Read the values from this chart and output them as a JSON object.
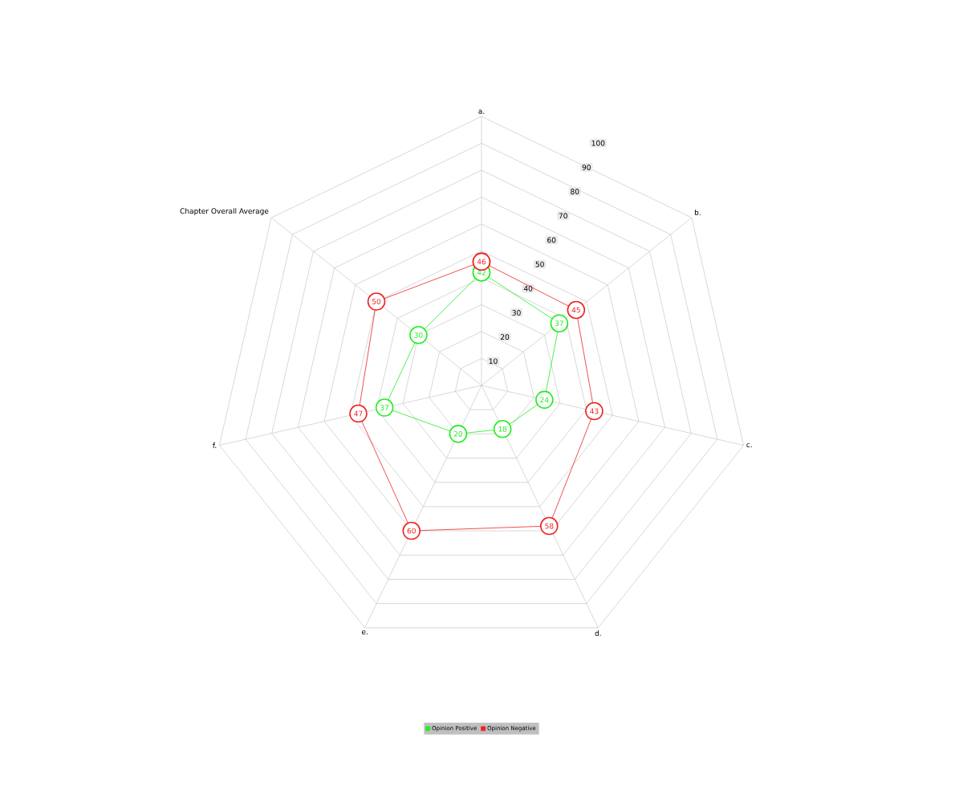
{
  "chart_data": {
    "type": "radar",
    "categories": [
      "a.",
      "b.",
      "c.",
      "d.",
      "e.",
      "f.",
      "Chapter Overall Average"
    ],
    "series": [
      {
        "name": "Opinion Positive",
        "color": "#22ee22",
        "values": [
          42,
          37,
          24,
          18,
          20,
          37,
          30
        ]
      },
      {
        "name": "Opinion Negative",
        "color": "#ee2222",
        "values": [
          46,
          45,
          43,
          58,
          60,
          47,
          50
        ]
      }
    ],
    "ylim": [
      0,
      100
    ],
    "yticks": [
      10,
      20,
      30,
      40,
      50,
      60,
      70,
      80,
      90,
      100
    ],
    "grid": true,
    "data_labels": true,
    "marker": "circle",
    "legend": "bottom"
  }
}
